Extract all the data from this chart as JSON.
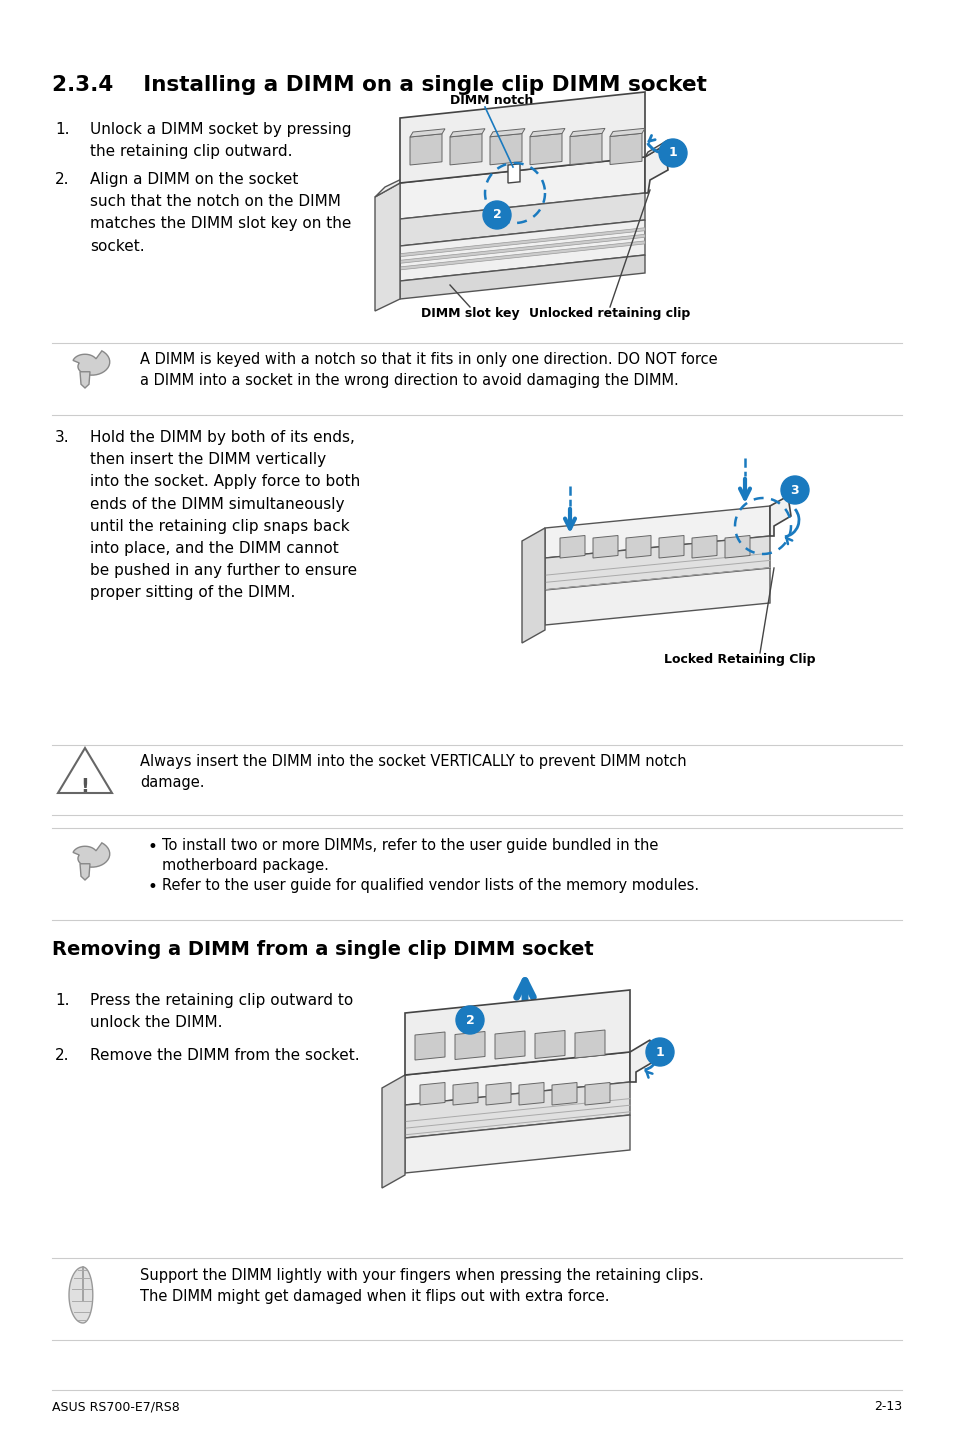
{
  "page_bg": "#ffffff",
  "text_color": "#000000",
  "blue": "#1a7abf",
  "gray": "#888888",
  "light_gray": "#cccccc",
  "section_title": "2.3.4    Installing a DIMM on a single clip DIMM socket",
  "section2_title": "Removing a DIMM from a single clip DIMM socket",
  "footer_left": "ASUS RS700-E7/RS8",
  "footer_right": "2-13",
  "step1_text": "Unlock a DIMM socket by pressing\nthe retaining clip outward.",
  "step2_text": "Align a DIMM on the socket\nsuch that the notch on the DIMM\nmatches the DIMM slot key on the\nsocket.",
  "step3_text": "Hold the DIMM by both of its ends,\nthen insert the DIMM vertically\ninto the socket. Apply force to both\nends of the DIMM simultaneously\nuntil the retaining clip snaps back\ninto place, and the DIMM cannot\nbe pushed in any further to ensure\nproper sitting of the DIMM.",
  "note1_text": "A DIMM is keyed with a notch so that it fits in only one direction. DO NOT force\na DIMM into a socket in the wrong direction to avoid damaging the DIMM.",
  "warn1_text": "Always insert the DIMM into the socket VERTICALLY to prevent DIMM notch\ndamage.",
  "bullet1": "To install two or more DIMMs, refer to the user guide bundled in the\nmotherboard package.",
  "bullet2": "Refer to the user guide for qualified vendor lists of the memory modules.",
  "rem1_text": "Press the retaining clip outward to\nunlock the DIMM.",
  "rem2_text": "Remove the DIMM from the socket.",
  "note3_text": "Support the DIMM lightly with your fingers when pressing the retaining clips.\nThe DIMM might get damaged when it flips out with extra force.",
  "label_dimm_notch": "DIMM notch",
  "label_slot_key": "DIMM slot key",
  "label_unlocked_clip": "Unlocked retaining clip",
  "label_locked_clip": "Locked Retaining Clip"
}
